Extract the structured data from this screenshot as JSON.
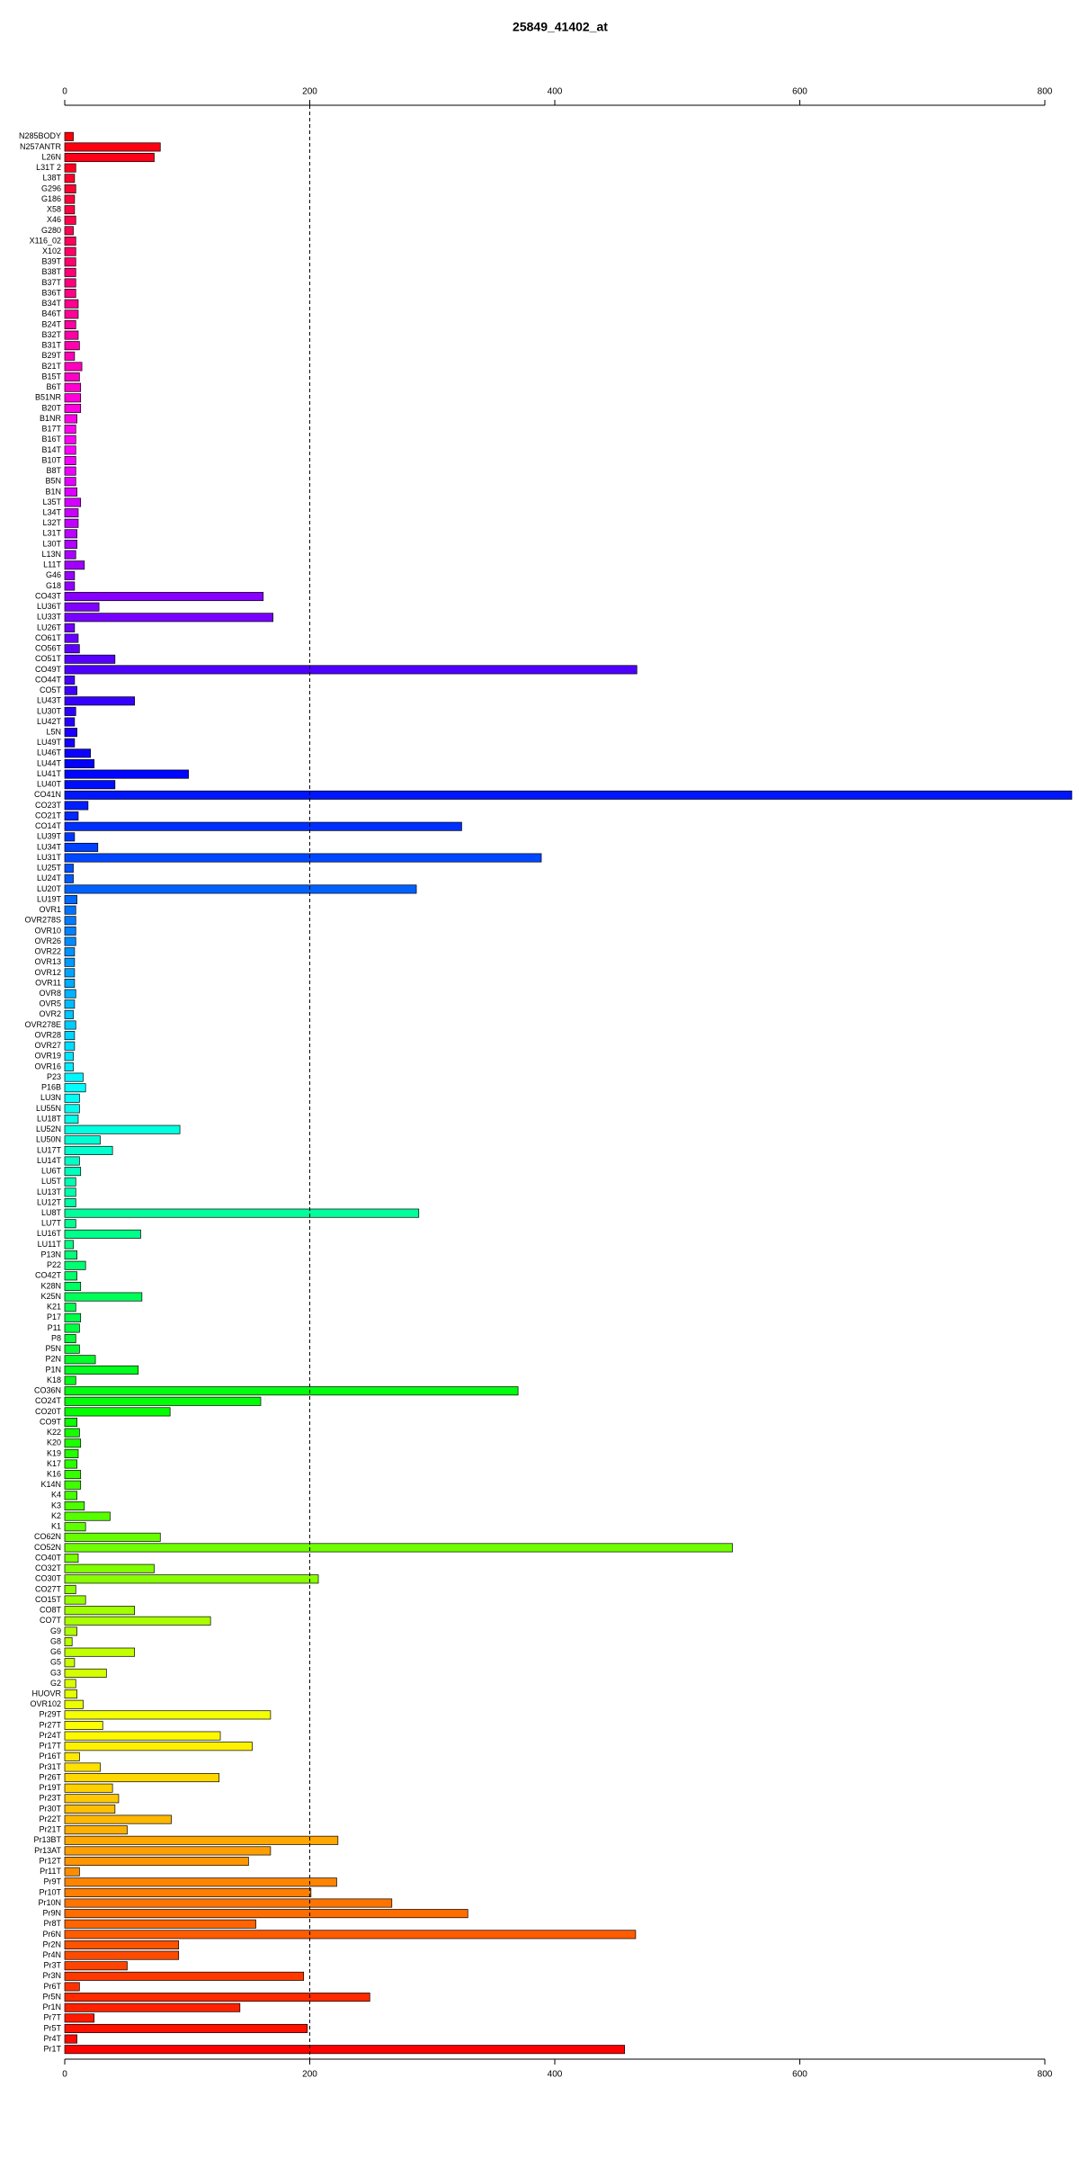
{
  "chart_data": {
    "type": "barh",
    "title": "25849_41402_at",
    "categories": [
      "N285BODY",
      "N257ANTR",
      "L26N",
      "L31T 2",
      "L38T",
      "G296",
      "G186",
      "X58",
      "X46",
      "G280",
      "X116_02",
      "X102",
      "B39T",
      "B38T",
      "B37T",
      "B36T",
      "B34T",
      "B46T",
      "B24T",
      "B32T",
      "B31T",
      "B29T",
      "B21T",
      "B15T",
      "B6T",
      "B51NR",
      "B20T",
      "B1NR",
      "B17T",
      "B16T",
      "B14T",
      "B10T",
      "B8T",
      "B5N",
      "B1N",
      "L35T",
      "L34T",
      "L32T",
      "L31T",
      "L30T",
      "L13N",
      "L11T",
      "G46",
      "G18",
      "CO43T",
      "LU36T",
      "LU33T",
      "LU26T",
      "CO61T",
      "CO56T",
      "CO51T",
      "CO49T",
      "CO44T",
      "CO5T",
      "LU43T",
      "LU30T",
      "LU42T",
      "L5N",
      "LU49T",
      "LU46T",
      "LU44T",
      "LU41T",
      "LU40T",
      "CO41N",
      "CO23T",
      "CO21T",
      "CO14T",
      "LU39T",
      "LU34T",
      "LU31T",
      "LU25T",
      "LU24T",
      "LU20T",
      "LU19T",
      "OVR1",
      "OVR278S",
      "OVR10",
      "OVR26",
      "OVR22",
      "OVR13",
      "OVR12",
      "OVR11",
      "OVR8",
      "OVR5",
      "OVR2",
      "OVR278E",
      "OVR28",
      "OVR27",
      "OVR19",
      "OVR16",
      "P23",
      "P16B",
      "LU3N",
      "LU55N",
      "LU18T",
      "LU52N",
      "LU50N",
      "LU17T",
      "LU14T",
      "LU6T",
      "LU5T",
      "LU13T",
      "LU12T",
      "LU8T",
      "LU7T",
      "LU16T",
      "LU11T",
      "P13N",
      "P22",
      "CO42T",
      "K28N",
      "K25N",
      "K21",
      "P17",
      "P11",
      "P8",
      "P5N",
      "P2N",
      "P1N",
      "K18",
      "CO36N",
      "CO24T",
      "CO20T",
      "CO9T",
      "K22",
      "K20",
      "K19",
      "K17",
      "K16",
      "K14N",
      "K4",
      "K3",
      "K2",
      "K1",
      "CO62N",
      "CO52N",
      "CO40T",
      "CO32T",
      "CO30T",
      "CO27T",
      "CO15T",
      "CO8T",
      "CO7T",
      "G9",
      "G8",
      "G6",
      "G5",
      "G3",
      "G2",
      "HUOVR",
      "OVR102",
      "Pr29T",
      "Pr27T",
      "Pr24T",
      "Pr17T",
      "Pr16T",
      "Pr31T",
      "Pr26T",
      "Pr19T",
      "Pr23T",
      "Pr30T",
      "Pr22T",
      "Pr21T",
      "Pr13BT",
      "Pr13AT",
      "Pr12T",
      "Pr11T",
      "Pr9T",
      "Pr10T",
      "Pr10N",
      "Pr9N",
      "Pr8T",
      "Pr6N",
      "Pr2N",
      "Pr4N",
      "Pr3T",
      "Pr3N",
      "Pr6T",
      "Pr5N",
      "Pr1N",
      "Pr7T",
      "Pr5T",
      "Pr4T",
      "Pr1T"
    ],
    "values": [
      7,
      78,
      73,
      9,
      8,
      9,
      8,
      8,
      9,
      7,
      9,
      9,
      9,
      9,
      9,
      9,
      11,
      11,
      9,
      11,
      12,
      8,
      14,
      12,
      13,
      13,
      13,
      10,
      9,
      9,
      9,
      9,
      9,
      9,
      10,
      13,
      11,
      11,
      10,
      10,
      9,
      16,
      8,
      8,
      162,
      28,
      170,
      8,
      11,
      12,
      41,
      467,
      8,
      10,
      57,
      9,
      8,
      10,
      8,
      21,
      24,
      101,
      41,
      822,
      19,
      11,
      324,
      8,
      27,
      389,
      7,
      7,
      287,
      10,
      9,
      9,
      9,
      9,
      8,
      8,
      8,
      8,
      9,
      8,
      7,
      9,
      8,
      8,
      7,
      7,
      15,
      17,
      12,
      12,
      11,
      94,
      29,
      39,
      12,
      13,
      9,
      9,
      9,
      289,
      9,
      62,
      7,
      10,
      17,
      10,
      13,
      63,
      9,
      13,
      12,
      9,
      12,
      25,
      60,
      9,
      370,
      160,
      86,
      10,
      12,
      13,
      11,
      10,
      13,
      13,
      10,
      16,
      37,
      17,
      78,
      545,
      11,
      73,
      207,
      9,
      17,
      57,
      119,
      10,
      6,
      57,
      8,
      34,
      9,
      10,
      15,
      168,
      31,
      127,
      153,
      12,
      29,
      126,
      39,
      44,
      41,
      87,
      51,
      223,
      168,
      150,
      12,
      222,
      201,
      267,
      329,
      156,
      466,
      93,
      93,
      51,
      195,
      12,
      249,
      143,
      24,
      198,
      10,
      457
    ],
    "palette": "rainbow",
    "xlim": [
      0,
      822
    ],
    "xticks": [
      0,
      200,
      400,
      600,
      800
    ],
    "vline": 200
  }
}
